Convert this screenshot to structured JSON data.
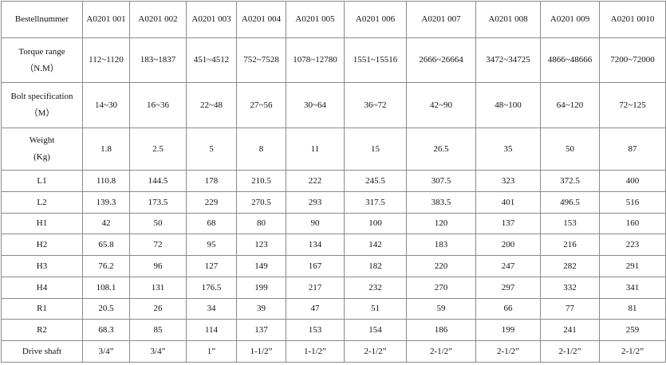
{
  "table": {
    "rows": [
      [
        "Bestellnummer",
        "A0201 001",
        "A0201 002",
        "A0201 003",
        "A0201 004",
        "A0201 005",
        "A0201 006",
        "A0201 007",
        "A0201 008",
        "A0201 009",
        "A0201 0010"
      ],
      [
        "Torque range\n（N.M）",
        "112~1120",
        "183~1837",
        "451~4512",
        "752~7528",
        "1078~12780",
        "1551~15516",
        "2666~26664",
        "3472~34725",
        "4866~48666",
        "7200~72000"
      ],
      [
        "Bolt specification\n（M）",
        "14~30",
        "16~36",
        "22~48",
        "27~56",
        "30~64",
        "36~72",
        "42~90",
        "48~100",
        "64~120",
        "72~125"
      ],
      [
        "Weight\n(Kg)",
        "1.8",
        "2.5",
        "5",
        "8",
        "11",
        "15",
        "26.5",
        "35",
        "50",
        "87"
      ],
      [
        "L1",
        "110.8",
        "144.5",
        "178",
        "210.5",
        "222",
        "245.5",
        "307.5",
        "323",
        "372.5",
        "400"
      ],
      [
        "L2",
        "139.3",
        "173.5",
        "229",
        "270.5",
        "293",
        "317.5",
        "383.5",
        "401",
        "496.5",
        "516"
      ],
      [
        "H1",
        "42",
        "50",
        "68",
        "80",
        "90",
        "100",
        "120",
        "137",
        "153",
        "160"
      ],
      [
        "H2",
        "65.8",
        "72",
        "95",
        "123",
        "134",
        "142",
        "183",
        "200",
        "216",
        "223"
      ],
      [
        "H3",
        "76.2",
        "96",
        "127",
        "149",
        "167",
        "182",
        "220",
        "247",
        "282",
        "291"
      ],
      [
        "H4",
        "108.1",
        "131",
        "176.5",
        "199",
        "217",
        "232",
        "270",
        "297",
        "332",
        "341"
      ],
      [
        "R1",
        "20.5",
        "26",
        "34",
        "39",
        "47",
        "51",
        "59",
        "66",
        "77",
        "81"
      ],
      [
        "R2",
        "68.3",
        "85",
        "114",
        "137",
        "153",
        "154",
        "186",
        "199",
        "241",
        "259"
      ],
      [
        "Drive shaft",
        "3/4”",
        "3/4”",
        "1”",
        "1-1/2”",
        "1-1/2”",
        "2-1/2”",
        "2-1/2”",
        "2-1/2”",
        "2-1/2”",
        "2-1/2”"
      ]
    ]
  }
}
